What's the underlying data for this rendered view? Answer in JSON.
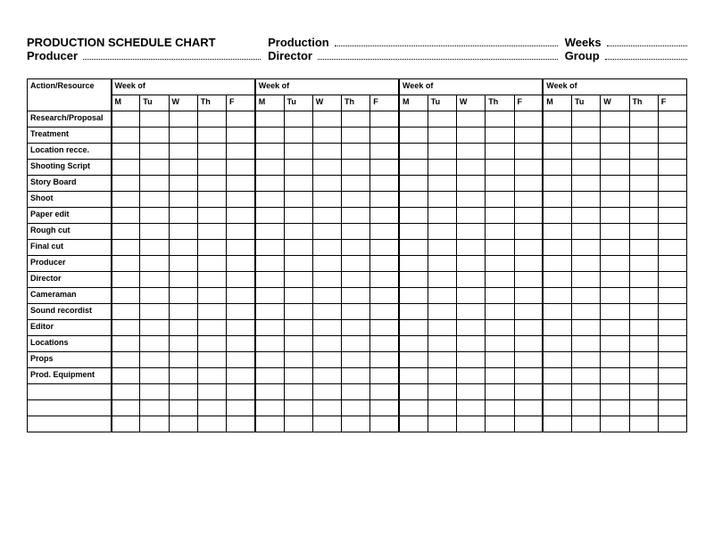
{
  "header": {
    "title": "PRODUCTION SCHEDULE CHART",
    "producer_label": "Producer",
    "production_label": "Production",
    "director_label": "Director",
    "weeks_label": "Weeks",
    "group_label": "Group"
  },
  "table": {
    "action_header": "Action/Resource",
    "week_of_label": "Week of",
    "week_count": 4,
    "days": [
      "M",
      "Tu",
      "W",
      "Th",
      "F"
    ],
    "activities": [
      "Research/Proposal",
      "Treatment",
      "Location recce.",
      "Shooting Script",
      "Story Board",
      "Shoot",
      "Paper edit",
      "Rough cut",
      "Final cut",
      "Producer",
      "Director",
      "Cameraman",
      "Sound recordist",
      "Editor",
      "Locations",
      "Props",
      "Prod. Equipment"
    ],
    "blank_rows": 3,
    "colors": {
      "background": "#ffffff",
      "border": "#000000",
      "text": "#000000"
    },
    "font": {
      "header_size_pt": 13,
      "cell_size_pt": 9,
      "weight": "bold"
    }
  }
}
